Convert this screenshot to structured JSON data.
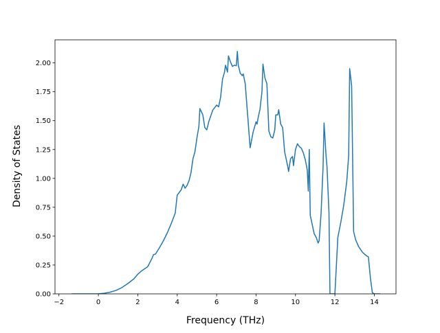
{
  "chart_data": {
    "type": "line",
    "title": "",
    "xlabel": "Frequency (THz)",
    "ylabel": "Density of States",
    "xlim": [
      -2.2,
      15.1
    ],
    "ylim": [
      0,
      2.2
    ],
    "xticks": [
      -2,
      0,
      2,
      4,
      6,
      8,
      10,
      12,
      14
    ],
    "yticks": [
      0.0,
      0.25,
      0.5,
      0.75,
      1.0,
      1.25,
      1.5,
      1.75,
      2.0
    ],
    "xtick_labels": [
      "−2",
      "0",
      "2",
      "4",
      "6",
      "8",
      "10",
      "12",
      "14"
    ],
    "ytick_labels": [
      "0.00",
      "0.25",
      "0.50",
      "0.75",
      "1.00",
      "1.25",
      "1.50",
      "1.75",
      "2.00"
    ],
    "grid": false,
    "series": [
      {
        "color": "#1f77b4",
        "points": [
          [
            -1.35,
            0.0
          ],
          [
            -0.5,
            0.0
          ],
          [
            0.0,
            0.0
          ],
          [
            0.3,
            0.005
          ],
          [
            0.6,
            0.015
          ],
          [
            0.9,
            0.03
          ],
          [
            1.2,
            0.055
          ],
          [
            1.5,
            0.09
          ],
          [
            1.8,
            0.13
          ],
          [
            2.0,
            0.17
          ],
          [
            2.2,
            0.2
          ],
          [
            2.5,
            0.235
          ],
          [
            2.7,
            0.3
          ],
          [
            2.8,
            0.34
          ],
          [
            2.9,
            0.345
          ],
          [
            3.1,
            0.4
          ],
          [
            3.3,
            0.46
          ],
          [
            3.5,
            0.53
          ],
          [
            3.7,
            0.61
          ],
          [
            3.9,
            0.7
          ],
          [
            4.0,
            0.855
          ],
          [
            4.2,
            0.9
          ],
          [
            4.3,
            0.95
          ],
          [
            4.4,
            0.915
          ],
          [
            4.5,
            0.94
          ],
          [
            4.6,
            0.98
          ],
          [
            4.7,
            1.05
          ],
          [
            4.8,
            1.17
          ],
          [
            4.9,
            1.23
          ],
          [
            5.0,
            1.35
          ],
          [
            5.1,
            1.45
          ],
          [
            5.15,
            1.605
          ],
          [
            5.3,
            1.55
          ],
          [
            5.4,
            1.44
          ],
          [
            5.5,
            1.42
          ],
          [
            5.6,
            1.49
          ],
          [
            5.8,
            1.59
          ],
          [
            6.0,
            1.635
          ],
          [
            6.1,
            1.62
          ],
          [
            6.2,
            1.7
          ],
          [
            6.3,
            1.86
          ],
          [
            6.4,
            1.92
          ],
          [
            6.45,
            1.98
          ],
          [
            6.55,
            1.92
          ],
          [
            6.6,
            2.06
          ],
          [
            6.7,
            2.01
          ],
          [
            6.8,
            1.97
          ],
          [
            6.9,
            1.98
          ],
          [
            7.0,
            1.975
          ],
          [
            7.05,
            2.1
          ],
          [
            7.1,
            1.98
          ],
          [
            7.2,
            1.91
          ],
          [
            7.3,
            1.89
          ],
          [
            7.35,
            1.905
          ],
          [
            7.45,
            1.82
          ],
          [
            7.55,
            1.6
          ],
          [
            7.7,
            1.265
          ],
          [
            7.85,
            1.4
          ],
          [
            8.0,
            1.49
          ],
          [
            8.05,
            1.47
          ],
          [
            8.1,
            1.52
          ],
          [
            8.2,
            1.6
          ],
          [
            8.3,
            1.75
          ],
          [
            8.35,
            1.99
          ],
          [
            8.45,
            1.87
          ],
          [
            8.55,
            1.82
          ],
          [
            8.65,
            1.41
          ],
          [
            8.75,
            1.36
          ],
          [
            8.85,
            1.35
          ],
          [
            8.95,
            1.42
          ],
          [
            9.0,
            1.55
          ],
          [
            9.1,
            1.55
          ],
          [
            9.15,
            1.595
          ],
          [
            9.25,
            1.47
          ],
          [
            9.35,
            1.44
          ],
          [
            9.45,
            1.23
          ],
          [
            9.6,
            1.11
          ],
          [
            9.65,
            1.06
          ],
          [
            9.75,
            1.17
          ],
          [
            9.85,
            1.19
          ],
          [
            9.9,
            1.11
          ],
          [
            10.0,
            1.25
          ],
          [
            10.1,
            1.3
          ],
          [
            10.2,
            1.275
          ],
          [
            10.3,
            1.26
          ],
          [
            10.4,
            1.22
          ],
          [
            10.5,
            1.16
          ],
          [
            10.6,
            1.07
          ],
          [
            10.65,
            0.89
          ],
          [
            10.7,
            1.25
          ],
          [
            10.75,
            0.68
          ],
          [
            10.85,
            0.6
          ],
          [
            10.95,
            0.52
          ],
          [
            11.05,
            0.49
          ],
          [
            11.15,
            0.44
          ],
          [
            11.2,
            0.46
          ],
          [
            11.3,
            0.7
          ],
          [
            11.4,
            1.1
          ],
          [
            11.45,
            1.48
          ],
          [
            11.55,
            1.2
          ],
          [
            11.6,
            1.1
          ],
          [
            11.7,
            0.7
          ],
          [
            11.75,
            0.0
          ],
          [
            12.0,
            0.0
          ],
          [
            12.15,
            0.49
          ],
          [
            12.3,
            0.62
          ],
          [
            12.45,
            0.77
          ],
          [
            12.6,
            0.97
          ],
          [
            12.7,
            1.2
          ],
          [
            12.75,
            1.95
          ],
          [
            12.85,
            1.8
          ],
          [
            12.95,
            0.54
          ],
          [
            13.05,
            0.47
          ],
          [
            13.2,
            0.41
          ],
          [
            13.4,
            0.36
          ],
          [
            13.6,
            0.33
          ],
          [
            13.7,
            0.32
          ],
          [
            13.8,
            0.14
          ],
          [
            13.9,
            0.01
          ],
          [
            14.0,
            0.0
          ],
          [
            14.3,
            0.0
          ]
        ]
      }
    ]
  }
}
